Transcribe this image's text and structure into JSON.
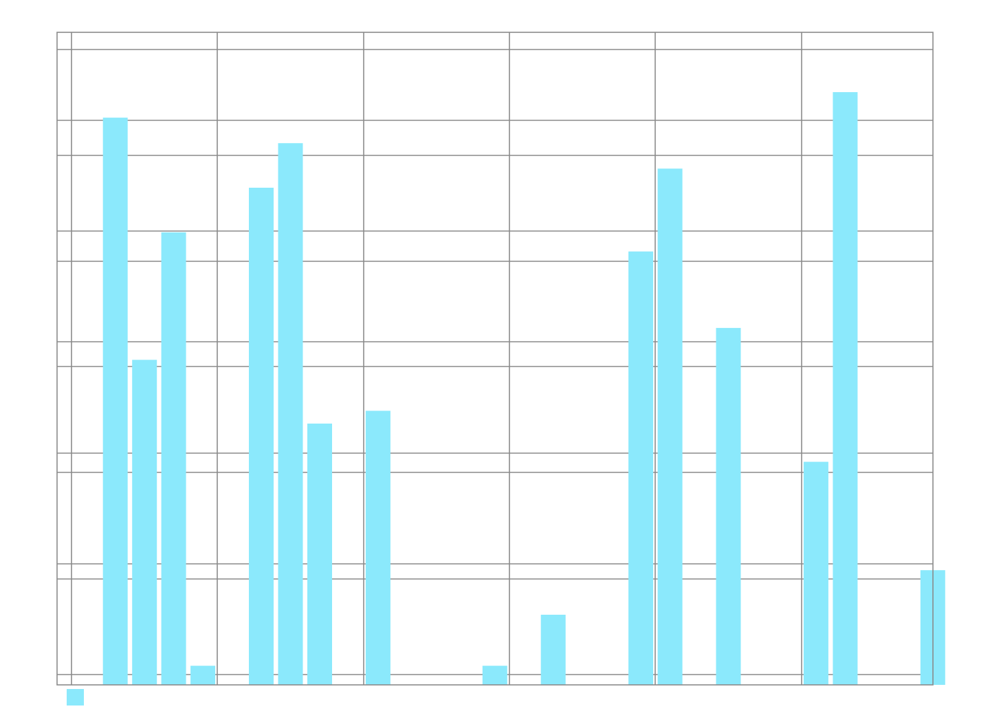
{
  "chart_data": {
    "type": "bar",
    "title": "",
    "xlabel": "",
    "ylabel": "",
    "legend_position": "bottom-left",
    "grid": true,
    "bar_color": "#8be9fc",
    "grid_color": "#8a8a8a",
    "background": "#ffffff",
    "ylim": [
      0,
      100
    ],
    "series": [
      {
        "values": [
          0,
          89,
          51,
          71,
          3,
          0,
          78,
          85,
          41,
          0,
          43,
          0,
          0,
          0,
          3,
          0,
          11,
          0,
          0,
          68,
          81,
          0,
          56,
          0,
          0,
          35,
          93,
          0,
          0,
          18
        ]
      }
    ]
  }
}
